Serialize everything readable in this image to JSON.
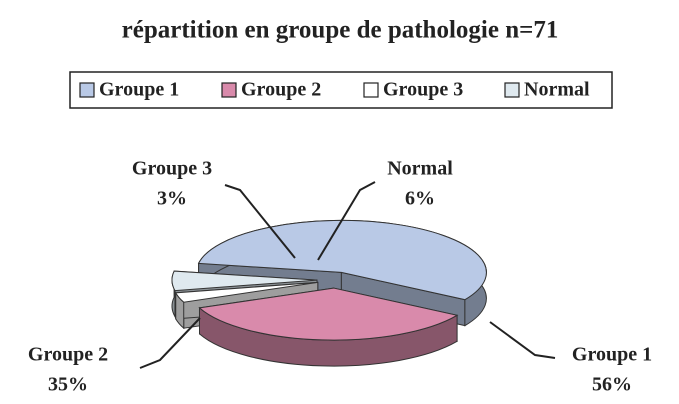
{
  "chart_data": {
    "type": "pie",
    "title": "répartition en groupe de pathologie n=71",
    "categories": [
      "Groupe 1",
      "Groupe 2",
      "Groupe 3",
      "Normal"
    ],
    "values": [
      56,
      35,
      3,
      6
    ],
    "value_labels": [
      "56%",
      "35%",
      "3%",
      "6%"
    ],
    "colors": [
      "#b9c9e6",
      "#d98aab",
      "#ffffff",
      "#dfe9ef"
    ],
    "legend": "top"
  }
}
